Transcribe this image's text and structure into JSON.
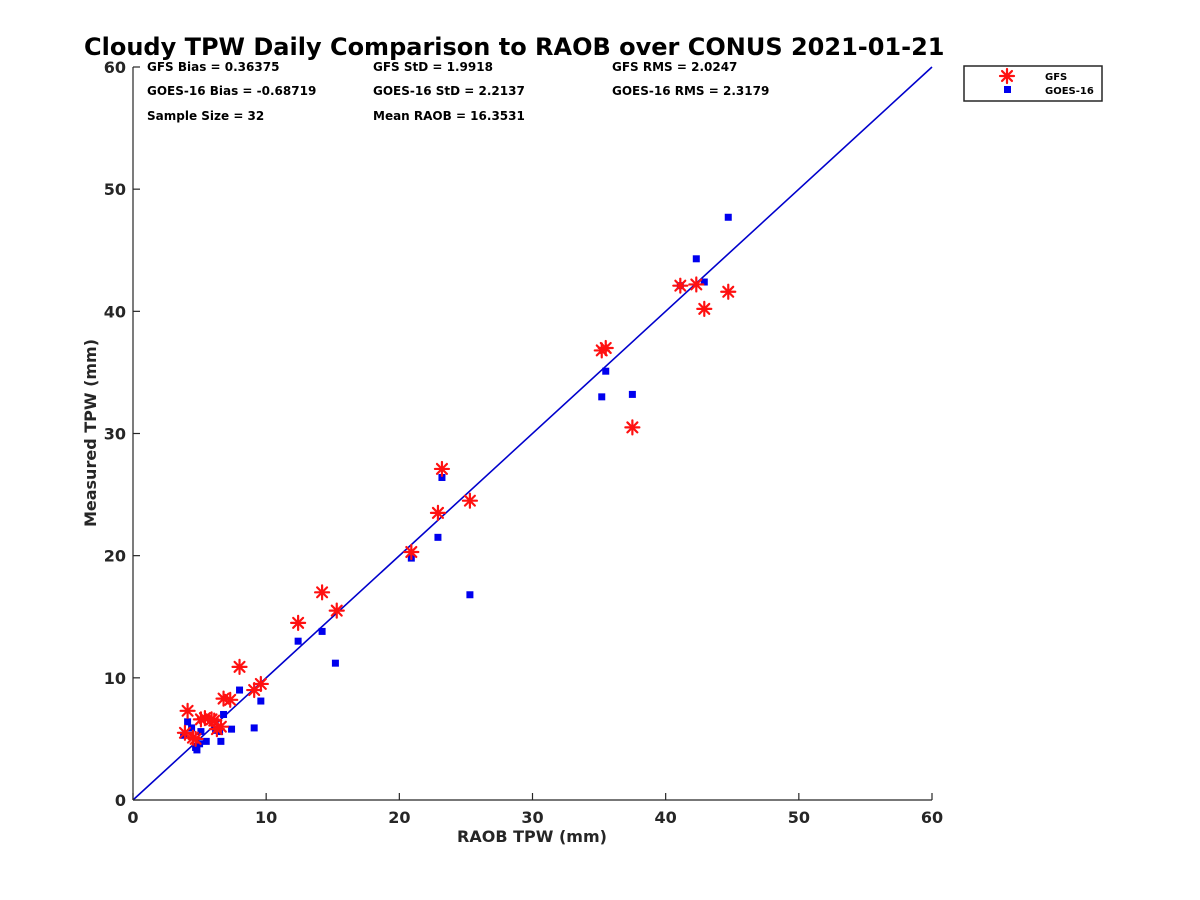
{
  "chart_data": {
    "type": "scatter",
    "title": "Cloudy TPW Daily Comparison to RAOB over CONUS 2021-01-21",
    "xlabel": "RAOB TPW (mm)",
    "ylabel": "Measured TPW (mm)",
    "xlim": [
      0,
      60
    ],
    "ylim": [
      0,
      60
    ],
    "xticks": [
      "0",
      "10",
      "20",
      "30",
      "40",
      "50",
      "60"
    ],
    "yticks": [
      "0",
      "10",
      "20",
      "30",
      "40",
      "50",
      "60"
    ],
    "grid": false,
    "legend_position": "top-right, outside plot",
    "reference_line": {
      "from": [
        0,
        0
      ],
      "to": [
        60,
        60
      ],
      "color": "#0000cc"
    },
    "stats": [
      [
        "GFS Bias = 0.36375",
        "GFS StD = 1.9918",
        "GFS RMS = 2.0247"
      ],
      [
        "GOES-16 Bias = -0.68719",
        "GOES-16 StD = 2.2137",
        "GOES-16 RMS = 2.3179"
      ],
      [
        "Sample Size = 32",
        "Mean RAOB = 16.3531",
        ""
      ]
    ],
    "series": [
      {
        "name": "GFS",
        "marker": "asterisk",
        "color": "#ff1111",
        "points": [
          [
            3.9,
            5.5
          ],
          [
            4.1,
            7.3
          ],
          [
            4.5,
            5.1
          ],
          [
            4.7,
            5.0
          ],
          [
            5.1,
            6.6
          ],
          [
            5.4,
            6.7
          ],
          [
            5.9,
            6.6
          ],
          [
            6.1,
            6.5
          ],
          [
            6.3,
            5.8
          ],
          [
            6.6,
            6.0
          ],
          [
            6.8,
            8.3
          ],
          [
            7.3,
            8.2
          ],
          [
            8.0,
            10.9
          ],
          [
            9.1,
            9.0
          ],
          [
            9.6,
            9.5
          ],
          [
            12.4,
            14.5
          ],
          [
            14.2,
            17.0
          ],
          [
            15.3,
            15.5
          ],
          [
            20.9,
            20.3
          ],
          [
            22.9,
            23.5
          ],
          [
            23.2,
            27.1
          ],
          [
            25.3,
            24.5
          ],
          [
            35.2,
            36.8
          ],
          [
            35.5,
            37.0
          ],
          [
            37.5,
            30.5
          ],
          [
            41.1,
            42.1
          ],
          [
            42.3,
            42.2
          ],
          [
            42.9,
            40.2
          ],
          [
            44.7,
            41.6
          ]
        ]
      },
      {
        "name": "GOES-16",
        "marker": "square",
        "color": "#0000ee",
        "points": [
          [
            3.8,
            5.3
          ],
          [
            4.1,
            6.4
          ],
          [
            4.4,
            5.9
          ],
          [
            4.7,
            4.3
          ],
          [
            4.8,
            4.1
          ],
          [
            5.0,
            4.6
          ],
          [
            5.1,
            5.6
          ],
          [
            5.5,
            4.8
          ],
          [
            6.2,
            5.7
          ],
          [
            6.5,
            5.6
          ],
          [
            6.6,
            4.8
          ],
          [
            6.8,
            7.0
          ],
          [
            7.4,
            5.8
          ],
          [
            8.0,
            9.0
          ],
          [
            9.1,
            5.9
          ],
          [
            9.6,
            8.1
          ],
          [
            12.4,
            13.0
          ],
          [
            14.2,
            13.8
          ],
          [
            15.2,
            11.2
          ],
          [
            20.9,
            19.8
          ],
          [
            22.9,
            21.5
          ],
          [
            23.2,
            26.4
          ],
          [
            25.3,
            16.8
          ],
          [
            35.2,
            33.0
          ],
          [
            35.5,
            35.1
          ],
          [
            37.5,
            33.2
          ],
          [
            41.1,
            42.1
          ],
          [
            42.3,
            44.3
          ],
          [
            42.9,
            42.4
          ],
          [
            44.7,
            47.7
          ]
        ]
      }
    ]
  }
}
